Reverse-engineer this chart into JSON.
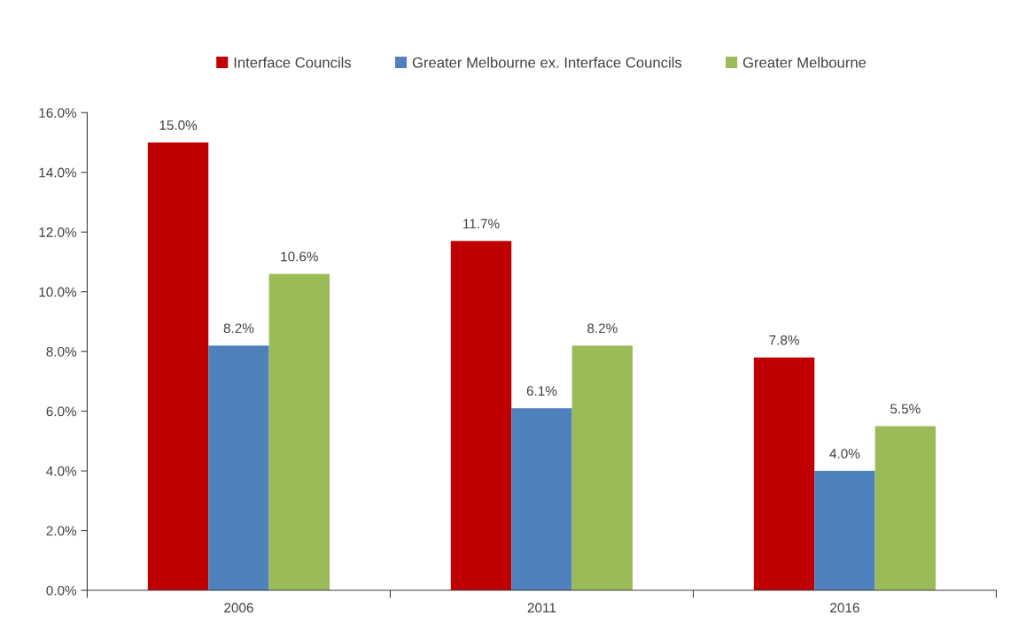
{
  "chart_data": {
    "type": "bar",
    "categories": [
      "2006",
      "2011",
      "2016"
    ],
    "series": [
      {
        "name": "Interface Councils",
        "color": "#c00000",
        "values": [
          15.0,
          11.7,
          7.8
        ],
        "value_labels": [
          "15.0%",
          "11.7%",
          "7.8%"
        ]
      },
      {
        "name": "Greater Melbourne ex. Interface Councils",
        "color": "#4f81bd",
        "values": [
          8.2,
          6.1,
          4.0
        ],
        "value_labels": [
          "8.2%",
          "6.1%",
          "4.0%"
        ]
      },
      {
        "name": "Greater Melbourne",
        "color": "#9bbb59",
        "values": [
          10.6,
          8.2,
          5.5
        ],
        "value_labels": [
          "10.6%",
          "8.2%",
          "5.5%"
        ]
      }
    ],
    "ylim": [
      0,
      16
    ],
    "yticks": [
      {
        "value": 0,
        "label": "0.0%"
      },
      {
        "value": 2,
        "label": "2.0%"
      },
      {
        "value": 4,
        "label": "4.0%"
      },
      {
        "value": 6,
        "label": "6.0%"
      },
      {
        "value": 8,
        "label": "8.0%"
      },
      {
        "value": 10,
        "label": "10.0%"
      },
      {
        "value": 12,
        "label": "12.0%"
      },
      {
        "value": 14,
        "label": "14.0%"
      },
      {
        "value": 16,
        "label": "16.0%"
      }
    ],
    "grid": false,
    "legend": "top"
  }
}
